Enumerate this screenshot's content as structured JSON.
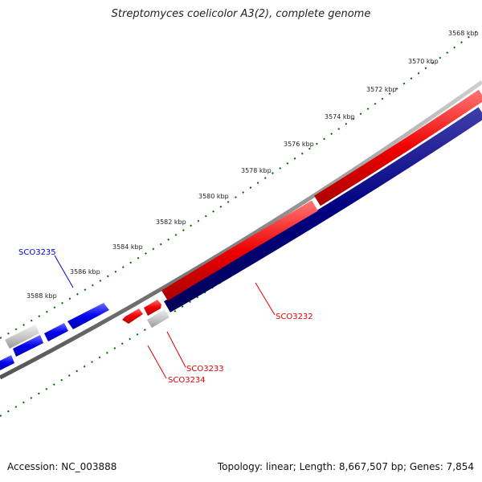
{
  "title": "Streptomyces coelicolor A3(2), complete genome",
  "footer": {
    "accession": "Accession: NC_003888",
    "summary": "Topology: linear; Length: 8,667,507 bp; Genes: 7,854"
  },
  "scale_ticks": [
    "3568 kbp",
    "3570 kbp",
    "3572 kbp",
    "3574 kbp",
    "3576 kbp",
    "3578 kbp",
    "3580 kbp",
    "3582 kbp",
    "3584 kbp",
    "3586 kbp",
    "3588 kbp"
  ],
  "genes": [
    {
      "label": "SCO3232",
      "color": "#e00000"
    },
    {
      "label": "SCO3233",
      "color": "#e00000"
    },
    {
      "label": "SCO3234",
      "color": "#e00000"
    },
    {
      "label": "SCO3235",
      "color": "#0000cc"
    }
  ],
  "colors": {
    "forward_gene": "#ee0000",
    "reverse_gene": "#0000ee",
    "cds_track": "#000080",
    "grey_feature": "#c8c8c8",
    "backbone": "#888888",
    "tick": "#006600"
  }
}
